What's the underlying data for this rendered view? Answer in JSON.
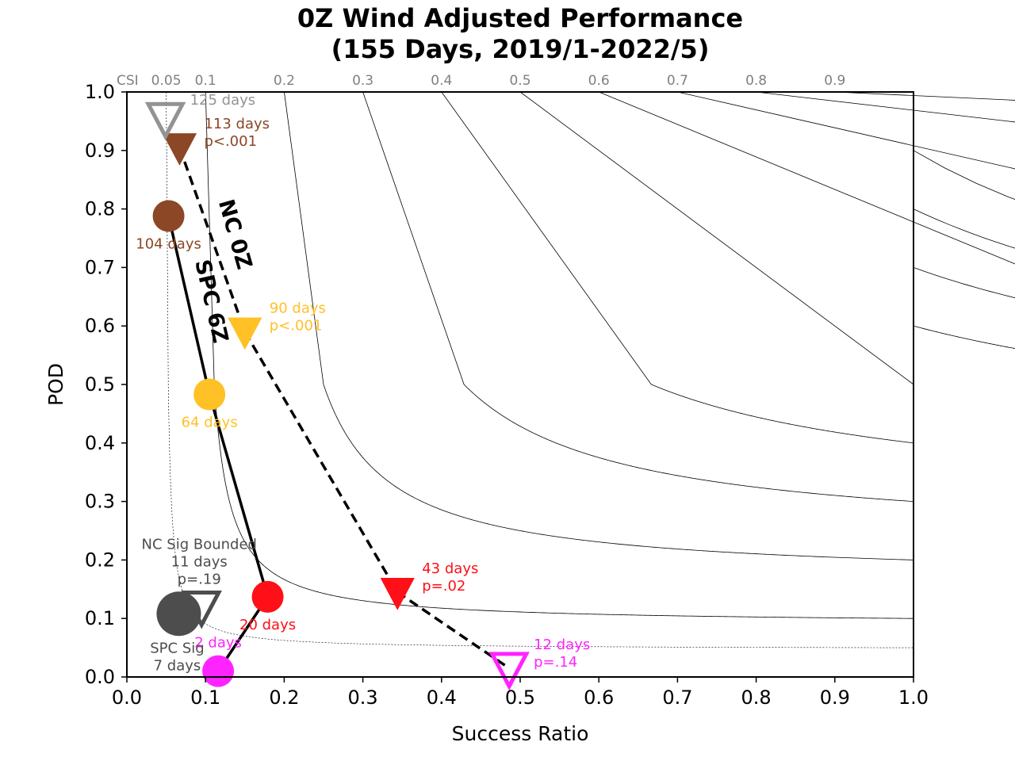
{
  "chart_data": {
    "type": "scatter",
    "title": "0Z Wind Adjusted Performance",
    "subtitle": "(155 Days, 2019/1-2022/5)",
    "xlabel": "Success Ratio",
    "ylabel": "POD",
    "xlim": [
      0.0,
      1.0
    ],
    "ylim": [
      0.0,
      1.0
    ],
    "x_ticks": [
      "0.0",
      "0.1",
      "0.2",
      "0.3",
      "0.4",
      "0.5",
      "0.6",
      "0.7",
      "0.8",
      "0.9",
      "1.0"
    ],
    "y_ticks": [
      "0.0",
      "0.1",
      "0.2",
      "0.3",
      "0.4",
      "0.5",
      "0.6",
      "0.7",
      "0.8",
      "0.9",
      "1.0"
    ],
    "csi_axis_label": "CSI",
    "csi_contours": [
      0.05,
      0.1,
      0.2,
      0.3,
      0.4,
      0.5,
      0.6,
      0.7,
      0.8,
      0.9
    ],
    "csi_tick_labels": [
      "0.05",
      "0.1",
      "0.2",
      "0.3",
      "0.4",
      "0.5",
      "0.6",
      "0.7",
      "0.8",
      "0.9"
    ],
    "series": [
      {
        "name": "NC 0Z",
        "marker": "triangle-down",
        "line_style": "dashed",
        "points": [
          {
            "x": 0.067,
            "y": 0.905,
            "color": "#8b4726",
            "filled": true,
            "labels": [
              "113 days",
              "p<.001"
            ]
          },
          {
            "x": 0.15,
            "y": 0.59,
            "color": "#ffc125",
            "filled": true,
            "labels": [
              "90 days",
              "p<.001"
            ]
          },
          {
            "x": 0.344,
            "y": 0.145,
            "color": "#ff0f17",
            "filled": true,
            "labels": [
              "43 days",
              "p=.02"
            ]
          },
          {
            "x": 0.486,
            "y": 0.015,
            "color": "#ff24ff",
            "filled": false,
            "labels": [
              "12 days",
              "p=.14"
            ]
          }
        ]
      },
      {
        "name": "SPC 6Z",
        "marker": "circle",
        "line_style": "solid",
        "points": [
          {
            "x": 0.053,
            "y": 0.788,
            "color": "#8b4726",
            "filled": true,
            "labels": [
              "104 days"
            ]
          },
          {
            "x": 0.105,
            "y": 0.483,
            "color": "#ffc125",
            "filled": true,
            "labels": [
              "64 days"
            ]
          },
          {
            "x": 0.179,
            "y": 0.137,
            "color": "#ff0f17",
            "filled": true,
            "labels": [
              "20 days"
            ]
          },
          {
            "x": 0.116,
            "y": 0.01,
            "color": "#ff24ff",
            "filled": true,
            "labels": [
              "2 days"
            ]
          }
        ]
      },
      {
        "name": "",
        "marker": "triangle-down",
        "line_style": "none",
        "points": [
          {
            "x": 0.049,
            "y": 0.955,
            "color": "#939393",
            "filled": false,
            "labels": [
              "125 days"
            ]
          }
        ]
      },
      {
        "name": "NC Sig Bounded",
        "marker": "triangle-down",
        "line_style": "none",
        "points": [
          {
            "x": 0.095,
            "y": 0.12,
            "color": "#4d4d4d",
            "filled": false,
            "labels": [
              "NC Sig Bounded",
              "11 days",
              "p=.19"
            ]
          }
        ]
      },
      {
        "name": "SPC Sig",
        "marker": "circle",
        "line_style": "none",
        "points": [
          {
            "x": 0.066,
            "y": 0.108,
            "color": "#4d4d4d",
            "filled": true,
            "labels": [
              "SPC Sig",
              "7 days"
            ]
          }
        ]
      }
    ]
  }
}
